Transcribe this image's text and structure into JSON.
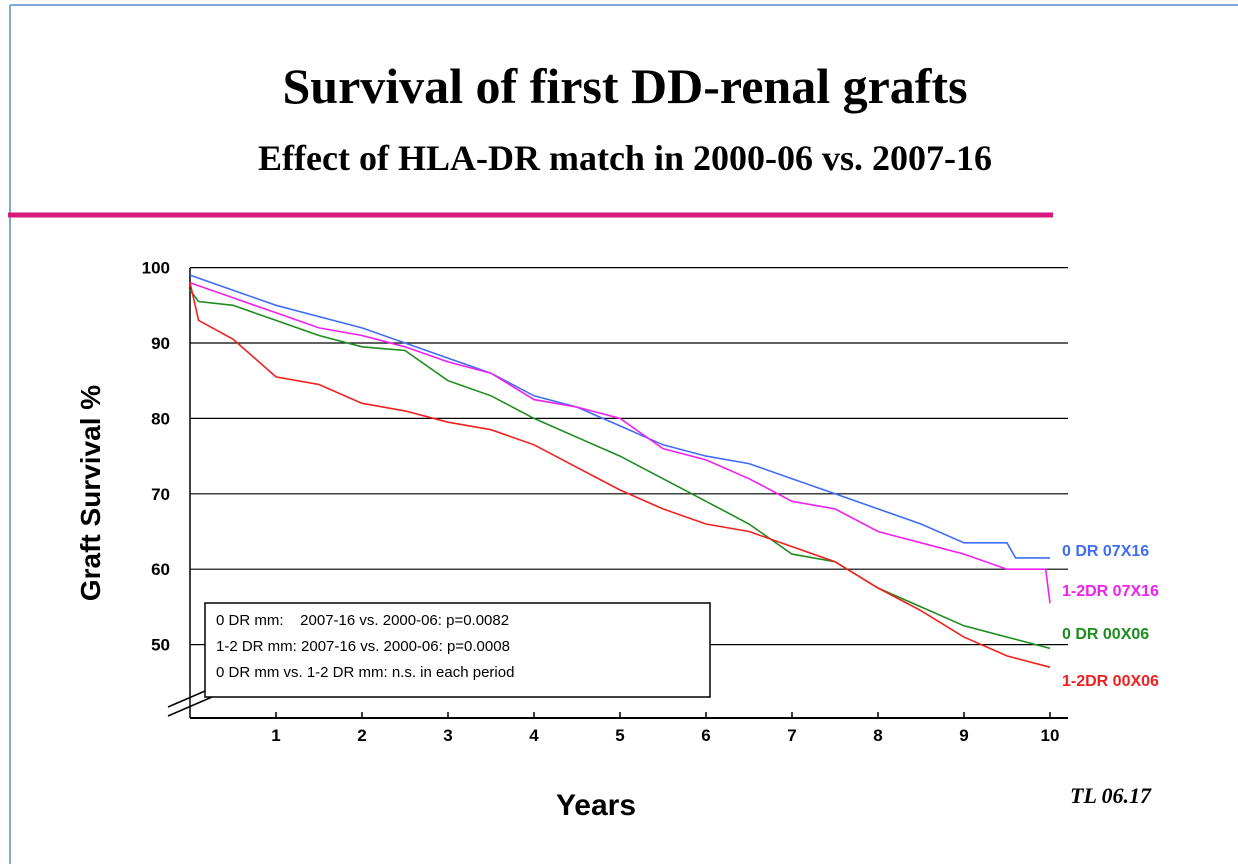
{
  "chart_data": {
    "type": "line",
    "title": "Survival of first DD-renal grafts",
    "subtitle": "Effect of HLA-DR match in 2000-06 vs. 2007-16",
    "y_label": "Graft Survival %",
    "x_label": "Years",
    "footnote": "TL 06.17",
    "annotations": [
      "0 DR mm:    2007-16 vs. 2000-06: p=0.0082",
      "1-2 DR mm: 2007-16 vs. 2000-06: p=0.0008",
      "0 DR mm vs. 1-2 DR mm: n.s. in each period"
    ],
    "xlim": [
      0,
      10
    ],
    "xticks": [
      1,
      2,
      3,
      4,
      5,
      6,
      7,
      8,
      9,
      10
    ],
    "ylim": [
      40,
      100
    ],
    "yticks": [
      50,
      60,
      70,
      80,
      90,
      100
    ],
    "grid": true,
    "series": [
      {
        "name": "0 DR 07X16",
        "color": "#3f6df5",
        "x": [
          0,
          0.5,
          1,
          1.5,
          2,
          2.5,
          3,
          3.5,
          4,
          4.5,
          5,
          5.5,
          6,
          6.5,
          7,
          7.5,
          8,
          8.5,
          9,
          9.5,
          9.6,
          10
        ],
        "values": [
          99,
          97,
          95,
          93.5,
          92,
          90,
          88,
          86,
          83,
          81.5,
          79,
          76.5,
          75,
          74,
          72,
          70,
          68,
          66,
          63.5,
          63.5,
          61.5,
          61.5
        ]
      },
      {
        "name": "1-2DR 07X16",
        "color": "#f020f0",
        "x": [
          0,
          0.5,
          1,
          1.5,
          2,
          2.5,
          3,
          3.5,
          4,
          4.5,
          5,
          5.5,
          6,
          6.5,
          7,
          7.5,
          8,
          8.5,
          9,
          9.5,
          9.95,
          10
        ],
        "values": [
          98,
          96,
          94,
          92,
          91,
          89.5,
          87.5,
          86,
          82.5,
          81.5,
          80,
          76,
          74.5,
          72,
          69,
          68,
          65,
          63.5,
          62,
          60,
          60,
          55.5
        ]
      },
      {
        "name": "0 DR 00X06",
        "color": "#1e8c1e",
        "x": [
          0,
          0.1,
          0.5,
          1,
          1.5,
          2,
          2.5,
          3,
          3.5,
          4,
          4.5,
          5,
          5.5,
          6,
          6.5,
          7,
          7.5,
          8,
          8.5,
          9,
          9.5,
          10
        ],
        "values": [
          97,
          95.5,
          95,
          93,
          91,
          89.5,
          89,
          85,
          83,
          80,
          77.5,
          75,
          72,
          69,
          66,
          62,
          61,
          57.5,
          55,
          52.5,
          51,
          49.5
        ]
      },
      {
        "name": "1-2DR 00X06",
        "color": "#f02020",
        "x": [
          0,
          0.1,
          0.5,
          1,
          1.5,
          2,
          2.5,
          3,
          3.5,
          4,
          4.5,
          5,
          5.5,
          6,
          6.5,
          7,
          7.5,
          8,
          8.5,
          9,
          9.5,
          10
        ],
        "values": [
          98,
          93,
          90.5,
          85.5,
          84.5,
          82,
          81,
          79.5,
          78.5,
          76.5,
          73.5,
          70.5,
          68,
          66,
          65,
          63,
          61,
          57.5,
          54.5,
          51,
          48.5,
          47
        ]
      }
    ]
  }
}
